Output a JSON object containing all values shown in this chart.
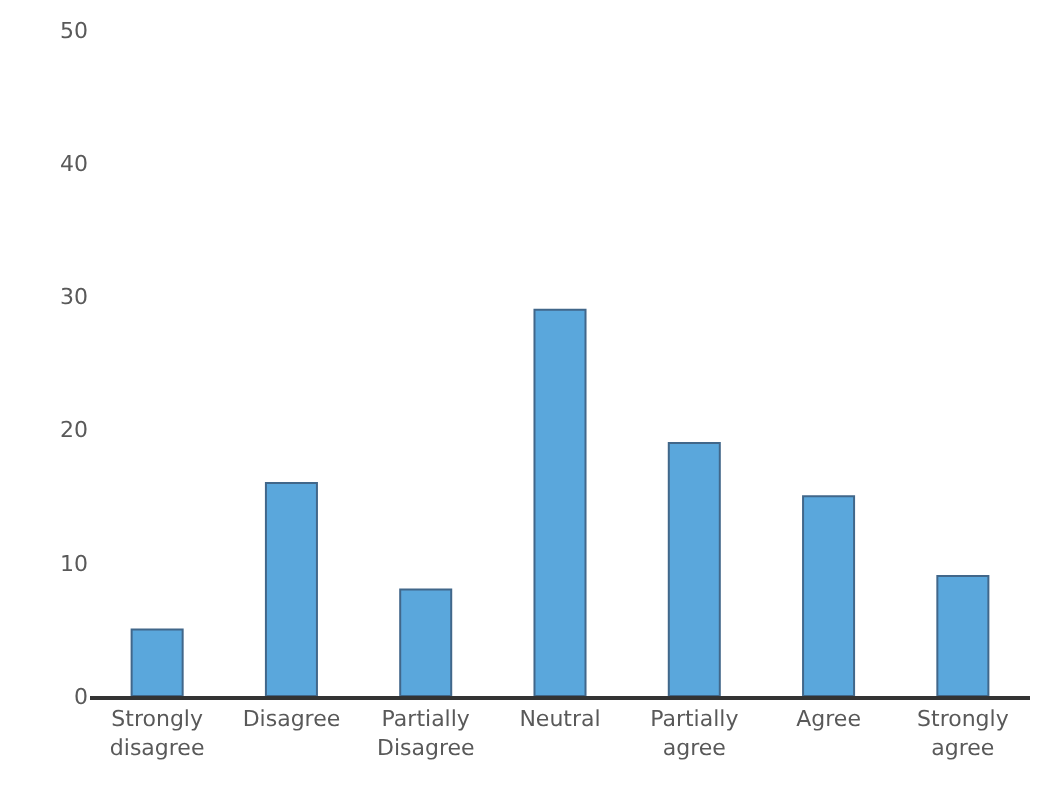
{
  "chart_data": {
    "type": "bar",
    "categories": [
      "Strongly disagree",
      "Disagree",
      "Partially Disagree",
      "Neutral",
      "Partially agree",
      "Agree",
      "Strongly agree"
    ],
    "values": [
      5,
      16,
      8,
      29,
      19,
      15,
      9
    ],
    "color": "#5aa7dc",
    "ylim": [
      0,
      50
    ],
    "yticks": [
      0,
      10,
      20,
      30,
      40,
      50
    ],
    "grid": false,
    "legend": false
  }
}
